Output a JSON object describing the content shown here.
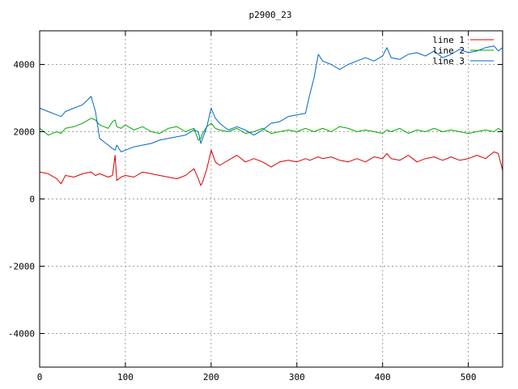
{
  "chart_data": {
    "type": "line",
    "title": "p2900_23",
    "xlabel": "",
    "ylabel": "",
    "xlim": [
      0,
      540
    ],
    "ylim": [
      -5000,
      5000
    ],
    "xticks": [
      0,
      100,
      200,
      300,
      400,
      500
    ],
    "yticks": [
      -4000,
      -2000,
      0,
      2000,
      4000
    ],
    "grid": true,
    "legend_position": "top-right",
    "x": [
      0,
      10,
      20,
      25,
      30,
      40,
      50,
      60,
      65,
      70,
      80,
      85,
      88,
      90,
      95,
      100,
      110,
      120,
      130,
      140,
      150,
      160,
      170,
      180,
      185,
      188,
      190,
      195,
      200,
      205,
      210,
      220,
      230,
      240,
      250,
      260,
      270,
      280,
      290,
      300,
      310,
      315,
      320,
      325,
      330,
      340,
      350,
      360,
      370,
      380,
      390,
      400,
      405,
      410,
      420,
      430,
      440,
      450,
      460,
      470,
      480,
      490,
      500,
      510,
      520,
      530,
      535,
      540
    ],
    "series": [
      {
        "name": "line 1",
        "color": "#dd0000",
        "values": [
          800,
          750,
          600,
          450,
          700,
          650,
          750,
          800,
          700,
          750,
          650,
          700,
          1300,
          550,
          650,
          700,
          650,
          800,
          750,
          700,
          650,
          600,
          700,
          900,
          600,
          400,
          500,
          900,
          1450,
          1100,
          1000,
          1150,
          1300,
          1100,
          1200,
          1100,
          950,
          1100,
          1150,
          1100,
          1200,
          1150,
          1200,
          1250,
          1200,
          1250,
          1150,
          1100,
          1200,
          1100,
          1250,
          1200,
          1350,
          1200,
          1150,
          1300,
          1100,
          1200,
          1250,
          1150,
          1250,
          1150,
          1200,
          1300,
          1200,
          1400,
          1350,
          850
        ]
      },
      {
        "name": "line 2",
        "color": "#00aa00",
        "values": [
          2100,
          1900,
          2000,
          1950,
          2100,
          2150,
          2250,
          2400,
          2350,
          2200,
          2100,
          2300,
          2350,
          2150,
          2100,
          2200,
          2050,
          2150,
          2000,
          1950,
          2100,
          2150,
          2000,
          2100,
          1750,
          1800,
          1950,
          2150,
          2250,
          2100,
          2050,
          2000,
          2100,
          1950,
          2000,
          2100,
          1950,
          2000,
          2050,
          2000,
          2100,
          2050,
          2000,
          2050,
          2100,
          2000,
          2150,
          2100,
          2000,
          2050,
          2000,
          1950,
          2050,
          2000,
          2100,
          1950,
          2050,
          2000,
          2100,
          2000,
          2050,
          2000,
          1950,
          2000,
          2050,
          2000,
          2100,
          2000
        ]
      },
      {
        "name": "line 3",
        "color": "#0066cc",
        "values": [
          2700,
          2600,
          2500,
          2450,
          2600,
          2700,
          2800,
          3050,
          2600,
          1800,
          1600,
          1500,
          1450,
          1600,
          1400,
          1450,
          1550,
          1600,
          1650,
          1750,
          1800,
          1850,
          1900,
          2050,
          2000,
          1650,
          1800,
          2150,
          2700,
          2400,
          2250,
          2050,
          2150,
          2050,
          1900,
          2050,
          2250,
          2300,
          2450,
          2500,
          2550,
          3100,
          3600,
          4300,
          4100,
          4000,
          3850,
          4000,
          4100,
          4200,
          4100,
          4250,
          4500,
          4200,
          4150,
          4300,
          4350,
          4250,
          4400,
          4200,
          4300,
          4450,
          4350,
          4400,
          4500,
          4550,
          4400,
          4500
        ]
      }
    ]
  }
}
